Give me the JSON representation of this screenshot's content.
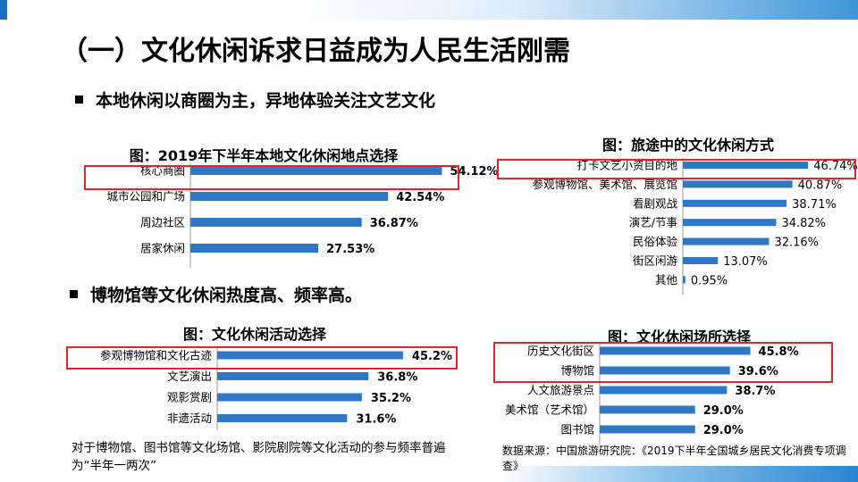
{
  "title": "（一）文化休闲诉求日益成为人民生活刚需",
  "bullets": [
    "本地休闲以商圈为主，异地体验关注文艺文化",
    "博物馆等文化休闲热度高、频率高。"
  ],
  "note": "对于博物馆、图书馆等文化场馆、影院剧院等文化活动的参与频率普遍为“半年一两次”",
  "source": "数据来源：中国旅游研究院：《2019下半年全国城乡居民文化消费专项调查》",
  "colors": {
    "bar": "#2f78c6",
    "highlight": "#e0252a",
    "axis": "#999999"
  },
  "chart_data": [
    {
      "type": "bar",
      "orientation": "horizontal",
      "title": "图：2019年下半年本地文化休闲地点选择",
      "categories": [
        "核心商圈",
        "城市公园和广场",
        "周边社区",
        "居家休闲"
      ],
      "values": [
        54.12,
        42.54,
        36.87,
        27.53
      ],
      "value_labels": [
        "54.12%",
        "42.54%",
        "36.87%",
        "27.53%"
      ],
      "highlighted": [
        "核心商圈"
      ]
    },
    {
      "type": "bar",
      "orientation": "horizontal",
      "title": "图：旅途中的文化休闲方式",
      "categories": [
        "打卡文艺小资目的地",
        "参观博物馆、美术馆、展览馆",
        "看剧观战",
        "演艺/节事",
        "民俗体验",
        "街区闲游",
        "其他"
      ],
      "values": [
        46.74,
        40.87,
        38.71,
        34.82,
        32.16,
        13.07,
        0.95
      ],
      "value_labels": [
        "46.74%",
        "40.87%",
        "38.71%",
        "34.82%",
        "32.16%",
        "13.07%",
        "0.95%"
      ],
      "highlighted": [
        "打卡文艺小资目的地"
      ]
    },
    {
      "type": "bar",
      "orientation": "horizontal",
      "title": "图：文化休闲活动选择",
      "categories": [
        "参观博物馆和文化古迹",
        "文艺演出",
        "观影赏剧",
        "非遗活动"
      ],
      "values": [
        45.2,
        36.8,
        35.2,
        31.6
      ],
      "value_labels": [
        "45.2%",
        "36.8%",
        "35.2%",
        "31.6%"
      ],
      "highlighted": [
        "参观博物馆和文化古迹"
      ]
    },
    {
      "type": "bar",
      "orientation": "horizontal",
      "title": "图：文化休闲场所选择",
      "categories": [
        "历史文化街区",
        "博物馆",
        "人文旅游景点",
        "美术馆（艺术馆）",
        "图书馆"
      ],
      "values": [
        45.8,
        39.6,
        38.7,
        29.0,
        29.0
      ],
      "value_labels": [
        "45.8%",
        "39.6%",
        "38.7%",
        "29.0%",
        "29.0%"
      ],
      "highlighted": [
        "历史文化街区",
        "博物馆"
      ]
    }
  ]
}
